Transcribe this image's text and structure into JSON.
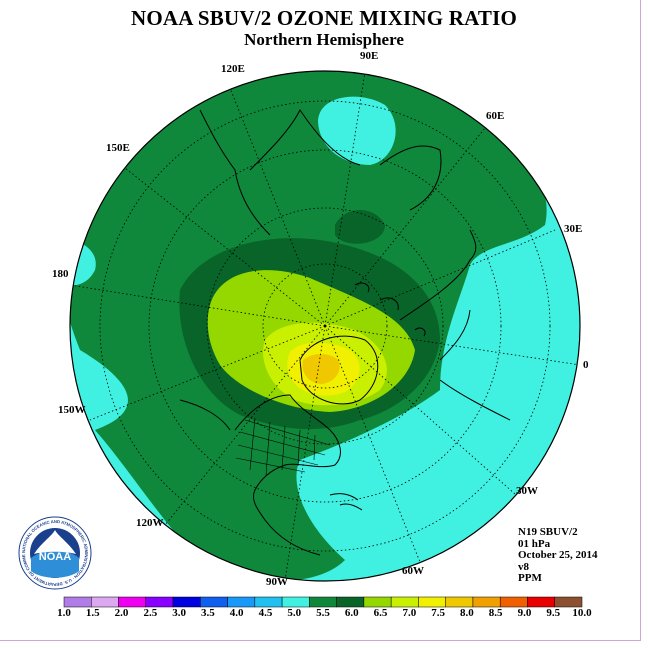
{
  "title": "NOAA SBUV/2 OZONE MIXING RATIO",
  "subtitle": "Northern Hemisphere",
  "longitude_labels": {
    "e90": "90E",
    "e120": "120E",
    "e60": "60E",
    "e150": "150E",
    "e30": "30E",
    "l180": "180",
    "l0": "0",
    "w150": "150W",
    "w30": "30W",
    "w120": "120W",
    "w60": "60W",
    "w90": "90W"
  },
  "info": {
    "satellite": "N19 SBUV/2",
    "level": "01 hPa",
    "date": "October 25, 2014",
    "version": "v8",
    "units": "PPM"
  },
  "logo": {
    "text": "NOAA",
    "ring_text": "NATIONAL OCEANIC AND ATMOSPHERIC ADMINISTRATION · U.S. DEPARTMENT OF COMMERCE"
  },
  "color_scale": {
    "ticks": [
      "1.0",
      "1.5",
      "2.0",
      "2.5",
      "3.0",
      "3.5",
      "4.0",
      "4.5",
      "5.0",
      "5.5",
      "6.0",
      "6.5",
      "7.0",
      "7.5",
      "8.0",
      "8.5",
      "9.0",
      "9.5",
      "10.0"
    ],
    "colors": [
      "#b07ce8",
      "#dca8f0",
      "#f000f0",
      "#8800ff",
      "#0000e0",
      "#1060f0",
      "#1898f8",
      "#20c0f0",
      "#40f0e0",
      "#10883c",
      "#086428",
      "#94d800",
      "#c8f000",
      "#f0f000",
      "#f0c800",
      "#f0a000",
      "#f06000",
      "#e80000",
      "#8c5030"
    ]
  }
}
